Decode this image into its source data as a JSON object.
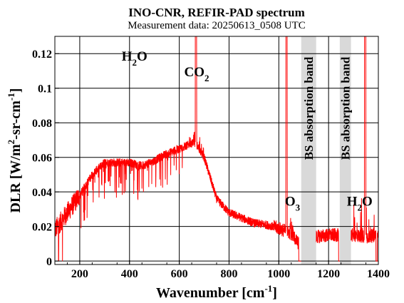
{
  "title": "INO-CNR, REFIR-PAD spectrum",
  "subtitle": "Measurement data: 20250613_0508 UTC",
  "chart_data": {
    "type": "line",
    "title": "INO-CNR, REFIR-PAD spectrum",
    "subtitle": "Measurement data: 20250613_0508 UTC",
    "xlabel": {
      "main": "Wavenumber [cm",
      "sup": "-1",
      "tail": "]"
    },
    "ylabel": {
      "p1": "DLR [W/m",
      "s1": "2",
      "p2": "-sr-cm",
      "s2": "-1",
      "p3": "]"
    },
    "xlim": [
      100,
      1400
    ],
    "ylim": [
      -0.002,
      0.13
    ],
    "xticks": [
      200,
      400,
      600,
      800,
      1000,
      1200,
      1400
    ],
    "yticks": [
      0,
      0.02,
      0.04,
      0.06,
      0.08,
      0.1,
      0.12
    ],
    "ytick_labels": [
      "0",
      "0.02",
      "0.04",
      "0.06",
      "0.08",
      "0.1",
      "0.12"
    ],
    "grid": true,
    "series_color": "#ff0000",
    "series": [
      {
        "x": [
          100,
          150,
          200,
          250,
          300,
          350,
          400,
          450,
          500,
          550,
          600,
          650,
          667,
          700,
          750,
          800,
          850,
          900,
          950,
          1000,
          1050,
          1080,
          1150,
          1200,
          1250,
          1300,
          1350,
          1400
        ],
        "y": [
          0.018,
          0.028,
          0.038,
          0.05,
          0.057,
          0.057,
          0.057,
          0.055,
          0.058,
          0.062,
          0.065,
          0.068,
          0.068,
          0.06,
          0.036,
          0.028,
          0.025,
          0.022,
          0.021,
          0.019,
          0.016,
          0.01,
          0.014,
          0.015,
          0.015,
          0.015,
          0.014,
          0.015
        ]
      }
    ],
    "shaded_bands": [
      {
        "from": 1090,
        "to": 1150,
        "label": "BS absorption band"
      },
      {
        "from": 1245,
        "to": 1290,
        "label": "BS absorption band"
      }
    ],
    "band_color": "#d9d9d9",
    "annotations": [
      {
        "text": "H",
        "sub": "2",
        "text2": "O",
        "x": 420,
        "y": 0.116
      },
      {
        "text": "CO",
        "sub": "2",
        "text2": "",
        "x": 670,
        "y": 0.107
      },
      {
        "text": "O",
        "sub": "3",
        "text2": "",
        "x": 1055,
        "y": 0.032
      },
      {
        "text": "H",
        "sub": "2",
        "text2": "O",
        "x": 1325,
        "y": 0.032
      }
    ]
  }
}
